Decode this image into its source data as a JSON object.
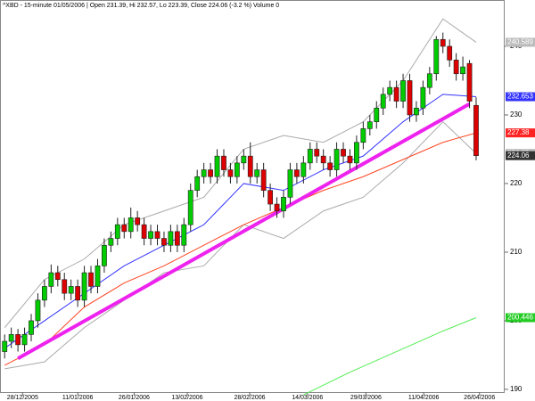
{
  "chart_data": {
    "type": "candlestick",
    "title": "^XBD - 15-minute 01/05/2006 | Open 231.39, Hi 232.57, Lo 223.39, Close 224.06 (-3.2 %) Volume 0",
    "xlim": [
      -0.7,
      75.3
    ],
    "ylim": [
      189.6,
      246.75
    ],
    "yticks": [
      190,
      200,
      210,
      220,
      230,
      240
    ],
    "xticks": [
      {
        "value": 2.7,
        "label": "28/12/2005"
      },
      {
        "value": 11,
        "label": "11/01/2006"
      },
      {
        "value": 19.5,
        "label": "26/01/2006"
      },
      {
        "value": 27.5,
        "label": "13/02/2006"
      },
      {
        "value": 36.9,
        "label": "28/02/2006"
      },
      {
        "value": 45.6,
        "label": "14/03/2006"
      },
      {
        "value": 54.4,
        "label": "29/03/2006"
      },
      {
        "value": 63.1,
        "label": "11/04/2006"
      },
      {
        "value": 71.5,
        "label": "26/04/2006"
      }
    ],
    "up_color": "#00cc00",
    "down_color": "#dd0000",
    "open": [
      195.5,
      197,
      198,
      196.5,
      198,
      200,
      203,
      205,
      207,
      206,
      204,
      205,
      203,
      207,
      205,
      208,
      211,
      212,
      214,
      213,
      215,
      214,
      212,
      213,
      212,
      211,
      213,
      211,
      214,
      219,
      221,
      222,
      221,
      224,
      222,
      221,
      223,
      224,
      221,
      222,
      219,
      217,
      216,
      218,
      222,
      221,
      223,
      225,
      224,
      223,
      222,
      225,
      224,
      223,
      226,
      228,
      229,
      231,
      233,
      234,
      232,
      235,
      230,
      231,
      234,
      236,
      241,
      240,
      238,
      236,
      237.5,
      231.39
    ],
    "high": [
      198,
      199,
      198.8,
      199,
      201,
      204,
      206,
      208.2,
      208,
      207,
      206,
      206,
      208,
      208,
      209,
      212,
      213,
      215,
      215,
      216.5,
      216,
      215,
      214,
      214,
      213,
      214,
      214,
      215,
      220,
      222,
      223,
      223,
      225,
      225,
      223,
      224,
      225,
      226,
      223,
      223,
      220,
      218,
      219,
      223,
      223,
      224,
      226,
      226,
      225,
      224,
      226,
      226,
      225,
      227,
      229,
      230,
      232,
      234,
      235,
      235,
      236,
      236,
      232,
      235,
      237,
      241.5,
      242,
      241,
      239,
      238.5,
      238,
      232.57
    ],
    "low": [
      194.5,
      196,
      195.5,
      195.5,
      197,
      199,
      202,
      204,
      205,
      203,
      203,
      202,
      202,
      204,
      204,
      207,
      210,
      211,
      212,
      212,
      213,
      211,
      211,
      211,
      210,
      210,
      210,
      210,
      213,
      218,
      220,
      220,
      220,
      221,
      220,
      220,
      222,
      220,
      220,
      218,
      216,
      215,
      215,
      217,
      220,
      220,
      222,
      223,
      222,
      221,
      221,
      223,
      222,
      222,
      225,
      227,
      228,
      230,
      232,
      231,
      231,
      229,
      229,
      230,
      233,
      235,
      239,
      237,
      235,
      235,
      231,
      223.39
    ],
    "close": [
      197,
      198,
      196.5,
      198,
      200,
      203,
      205,
      207,
      206,
      204,
      205,
      203,
      207,
      205,
      208,
      211,
      212,
      214,
      213,
      215,
      214,
      212,
      213,
      212,
      211,
      213,
      211,
      214,
      219,
      221,
      222,
      221,
      224,
      222,
      221,
      223,
      224,
      221,
      222,
      219,
      217,
      216,
      218,
      222,
      221,
      223,
      225,
      224,
      223,
      222,
      225,
      224,
      223,
      226,
      228,
      229,
      231,
      233,
      234,
      232,
      235,
      230,
      231,
      234,
      236,
      241,
      240,
      238,
      236,
      237,
      232,
      224.06
    ],
    "close_box_color": "#333333",
    "lines": [
      {
        "color": "#aaaaaa",
        "x": [
          0,
          6,
          12,
          18,
          24,
          30,
          36,
          42,
          48,
          54,
          60,
          66,
          71
        ],
        "values": [
          199,
          206,
          209,
          214,
          216,
          218,
          225,
          227,
          226,
          229,
          235,
          244,
          240.589
        ],
        "box_color": "#bbbbbb"
      },
      {
        "color": "#aaaaaa",
        "x": [
          0,
          6,
          12,
          18,
          24,
          30,
          36,
          42,
          48,
          54,
          60,
          66,
          71
        ],
        "values": [
          193,
          194,
          199,
          203,
          207,
          208,
          214,
          212,
          216,
          218,
          223,
          229,
          224.39
        ],
        "box_color": "#bbbbbb"
      },
      {
        "color": "#3333ff",
        "x": [
          0,
          6,
          12,
          18,
          24,
          30,
          36,
          42,
          48,
          54,
          60,
          66,
          71
        ],
        "values": [
          196,
          200,
          204,
          208,
          211,
          214,
          220,
          219,
          222,
          224,
          229,
          233,
          232.653
        ],
        "box_color": "#3333ff"
      },
      {
        "color": "#ff4422",
        "x": [
          0,
          6,
          12,
          18,
          24,
          30,
          36,
          42,
          48,
          54,
          60,
          66,
          71
        ],
        "values": [
          193.5,
          196.5,
          202,
          205.5,
          208,
          211,
          214,
          216.5,
          219,
          221,
          223.5,
          226,
          227.38
        ],
        "box_color": "#ff2222"
      },
      {
        "color": "#55ee55",
        "x": [
          45,
          52,
          59,
          66,
          71
        ],
        "values": [
          189.2,
          192.5,
          195.5,
          198.5,
          200.446
        ],
        "box_color": "#22cc22"
      }
    ],
    "trendline": {
      "color": "#ee22ee",
      "x": [
        2,
        70
      ],
      "values": [
        194.5,
        231.6
      ]
    }
  }
}
